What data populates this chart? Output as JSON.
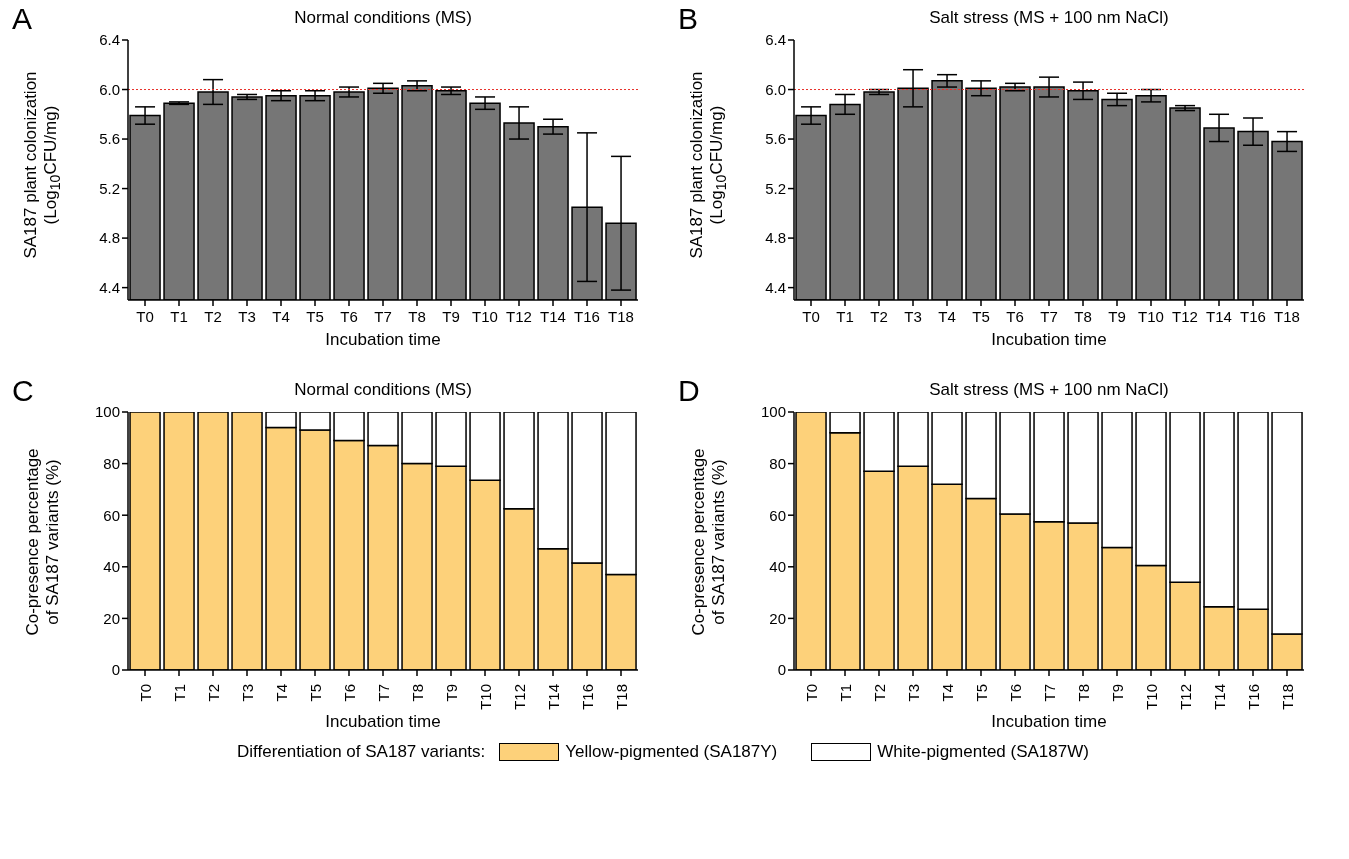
{
  "chart_data": [
    {
      "type": "bar",
      "title": "Normal conditions (MS)",
      "xlabel": "Incubation time",
      "ylabel": "SA187 plant colonization\n(Log$_{10}$CFU/mg)",
      "annotations": [
        "A"
      ],
      "categories": [
        "T0",
        "T1",
        "T2",
        "T3",
        "T4",
        "T5",
        "T6",
        "T7",
        "T8",
        "T9",
        "T10",
        "T12",
        "T14",
        "T16",
        "T18"
      ],
      "values": [
        5.79,
        5.89,
        5.98,
        5.94,
        5.95,
        5.95,
        5.98,
        6.01,
        6.03,
        5.99,
        5.89,
        5.73,
        5.7,
        5.05,
        4.92
      ],
      "errors": [
        0.07,
        0.01,
        0.1,
        0.02,
        0.04,
        0.04,
        0.04,
        0.04,
        0.04,
        0.03,
        0.05,
        0.13,
        0.06,
        0.6,
        0.54
      ],
      "color": "#767676",
      "ylim": [
        4.3,
        6.4
      ],
      "yticks": [
        4.4,
        4.8,
        5.2,
        5.6,
        {
          "value": 6,
          "label": "6.0"
        },
        6.4
      ],
      "ref_lines": [
        {
          "axis": "y",
          "value": 6,
          "color": "#e8302a",
          "line_style": "dotted"
        }
      ]
    },
    {
      "type": "bar",
      "title": "Salt stress (MS + 100 nm NaCl)",
      "xlabel": "Incubation time",
      "ylabel": "SA187 plant colonization\n(Log$_{10}$CFU/mg)",
      "annotations": [
        "B"
      ],
      "categories": [
        "T0",
        "T1",
        "T2",
        "T3",
        "T4",
        "T5",
        "T6",
        "T7",
        "T8",
        "T9",
        "T10",
        "T12",
        "T14",
        "T16",
        "T18"
      ],
      "values": [
        5.79,
        5.88,
        5.98,
        6.01,
        6.07,
        6.01,
        6.02,
        6.02,
        5.99,
        5.92,
        5.95,
        5.85,
        5.69,
        5.66,
        5.58
      ],
      "errors": [
        0.07,
        0.08,
        0.02,
        0.15,
        0.05,
        0.06,
        0.03,
        0.08,
        0.07,
        0.05,
        0.05,
        0.02,
        0.11,
        0.11,
        0.08
      ],
      "color": "#767676",
      "ylim": [
        4.3,
        6.4
      ],
      "yticks": [
        4.4,
        4.8,
        5.2,
        5.6,
        {
          "value": 6,
          "label": "6.0"
        },
        6.4
      ],
      "ref_lines": [
        {
          "axis": "y",
          "value": 6,
          "color": "#e8302a",
          "line_style": "dotted"
        }
      ]
    },
    {
      "type": "bar",
      "stacked": true,
      "title": "Normal conditions (MS)",
      "xlabel": "Incubation time",
      "ylabel": "Co-presence percentage\nof SA187 variants (%)",
      "annotations": [
        "C"
      ],
      "categories": [
        "T0",
        "T1",
        "T2",
        "T3",
        "T4",
        "T5",
        "T6",
        "T7",
        "T8",
        "T9",
        "T10",
        "T12",
        "T14",
        "T16",
        "T18"
      ],
      "series": [
        {
          "name": "Yellow-pigmented (SA187Y)",
          "color": "#fdd17a",
          "values": [
            100,
            100,
            100,
            100,
            94,
            93,
            89,
            87,
            80,
            79,
            73.5,
            62.5,
            47,
            41.5,
            37
          ]
        },
        {
          "name": "White-pigmented (SA187W)",
          "color": "#ffffff",
          "values": [
            0,
            0,
            0,
            0,
            6,
            7,
            11,
            13,
            20,
            21,
            26.5,
            37.5,
            53,
            58.5,
            63
          ]
        }
      ],
      "ylim": [
        0,
        100
      ],
      "yticks": [
        0,
        20,
        40,
        60,
        80,
        100
      ],
      "legend": "bottom",
      "legend_title": "Differentiation of SA187 variants:"
    },
    {
      "type": "bar",
      "stacked": true,
      "title": "Salt stress (MS + 100 nm NaCl)",
      "xlabel": "Incubation time",
      "ylabel": "Co-presence percentage\nof SA187 variants (%)",
      "annotations": [
        "D"
      ],
      "categories": [
        "T0",
        "T1",
        "T2",
        "T3",
        "T4",
        "T5",
        "T6",
        "T7",
        "T8",
        "T9",
        "T10",
        "T12",
        "T14",
        "T16",
        "T18"
      ],
      "series": [
        {
          "color": "#fdd17a",
          "values": [
            100,
            92,
            77,
            79,
            72,
            66.5,
            60.5,
            57.5,
            57,
            47.5,
            40.5,
            34,
            24.5,
            23.5,
            14
          ]
        },
        {
          "color": "#ffffff",
          "values": [
            0,
            8,
            23,
            21,
            28,
            33.5,
            39.5,
            42.5,
            43,
            52.5,
            59.5,
            66,
            75.5,
            76.5,
            86
          ]
        }
      ],
      "ylim": [
        0,
        100
      ],
      "yticks": [
        0,
        20,
        40,
        60,
        80,
        100
      ]
    }
  ]
}
